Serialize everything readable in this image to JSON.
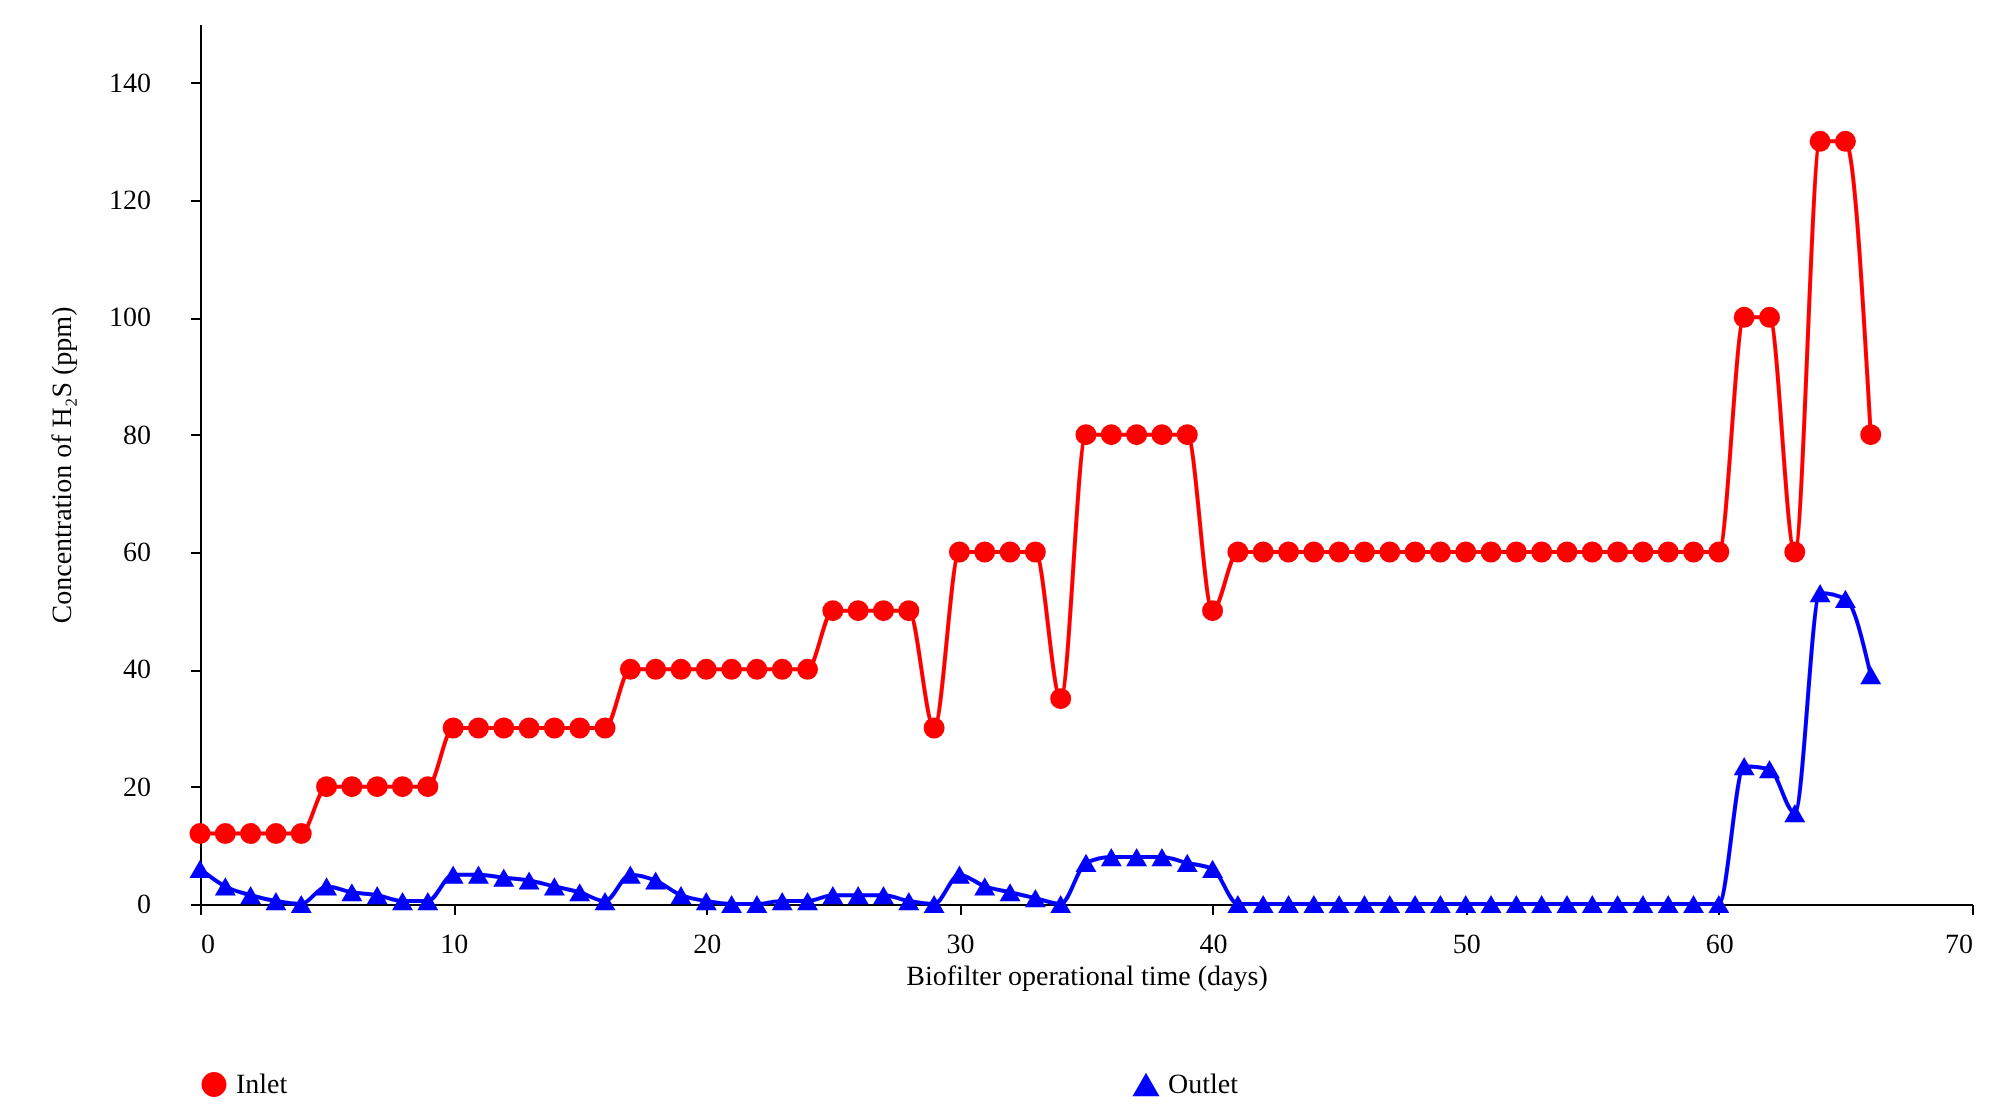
{
  "chart_data": {
    "type": "line",
    "xlabel": "Biofilter operational time (days)",
    "ylabel": "Concentration of H₂S (ppm)",
    "x": [
      0,
      1,
      2,
      3,
      4,
      5,
      6,
      7,
      8,
      9,
      10,
      11,
      12,
      13,
      14,
      15,
      16,
      17,
      18,
      19,
      20,
      21,
      22,
      23,
      24,
      25,
      26,
      27,
      28,
      29,
      30,
      31,
      32,
      33,
      34,
      35,
      36,
      37,
      38,
      39,
      40,
      41,
      42,
      43,
      44,
      45,
      46,
      47,
      48,
      49,
      50,
      51,
      52,
      53,
      54,
      55,
      56,
      57,
      58,
      59,
      60,
      61,
      62,
      63,
      64,
      65,
      66
    ],
    "series": [
      {
        "name": "Inlet",
        "color": "#ff0000",
        "marker": "circle",
        "values": [
          12,
          12,
          12,
          12,
          12,
          20,
          20,
          20,
          20,
          20,
          30,
          30,
          30,
          30,
          30,
          30,
          30,
          40,
          40,
          40,
          40,
          40,
          40,
          40,
          40,
          50,
          50,
          50,
          50,
          30,
          60,
          60,
          60,
          60,
          35,
          80,
          80,
          80,
          80,
          80,
          50,
          60,
          60,
          60,
          60,
          60,
          60,
          60,
          60,
          60,
          60,
          60,
          60,
          60,
          60,
          60,
          60,
          60,
          60,
          60,
          60,
          100,
          100,
          60,
          130,
          130,
          80
        ]
      },
      {
        "name": "Outlet",
        "color": "#0000ff",
        "marker": "triangle",
        "values": [
          6,
          3,
          1.5,
          0.5,
          0,
          3,
          2,
          1.5,
          0.5,
          0.5,
          5,
          5,
          4.5,
          4,
          3,
          2,
          0.5,
          5,
          4,
          1.5,
          0.5,
          0,
          0,
          0.5,
          0.5,
          1.5,
          1.5,
          1.5,
          0.5,
          0,
          5,
          3,
          2,
          1,
          0,
          7,
          8,
          8,
          8,
          7,
          6,
          0,
          0,
          0,
          0,
          0,
          0,
          0,
          0,
          0,
          0,
          0,
          0,
          0,
          0,
          0,
          0,
          0,
          0,
          0,
          0,
          23.5,
          23,
          15.5,
          53,
          52,
          39
        ]
      }
    ],
    "xlim": [
      0,
      70
    ],
    "xticks": [
      0,
      10,
      20,
      30,
      40,
      50,
      60,
      70
    ],
    "ylim": [
      0,
      150
    ],
    "yticks": [
      0,
      20,
      40,
      60,
      80,
      100,
      120,
      140
    ],
    "legend": "bottom",
    "line_style": "solid"
  }
}
